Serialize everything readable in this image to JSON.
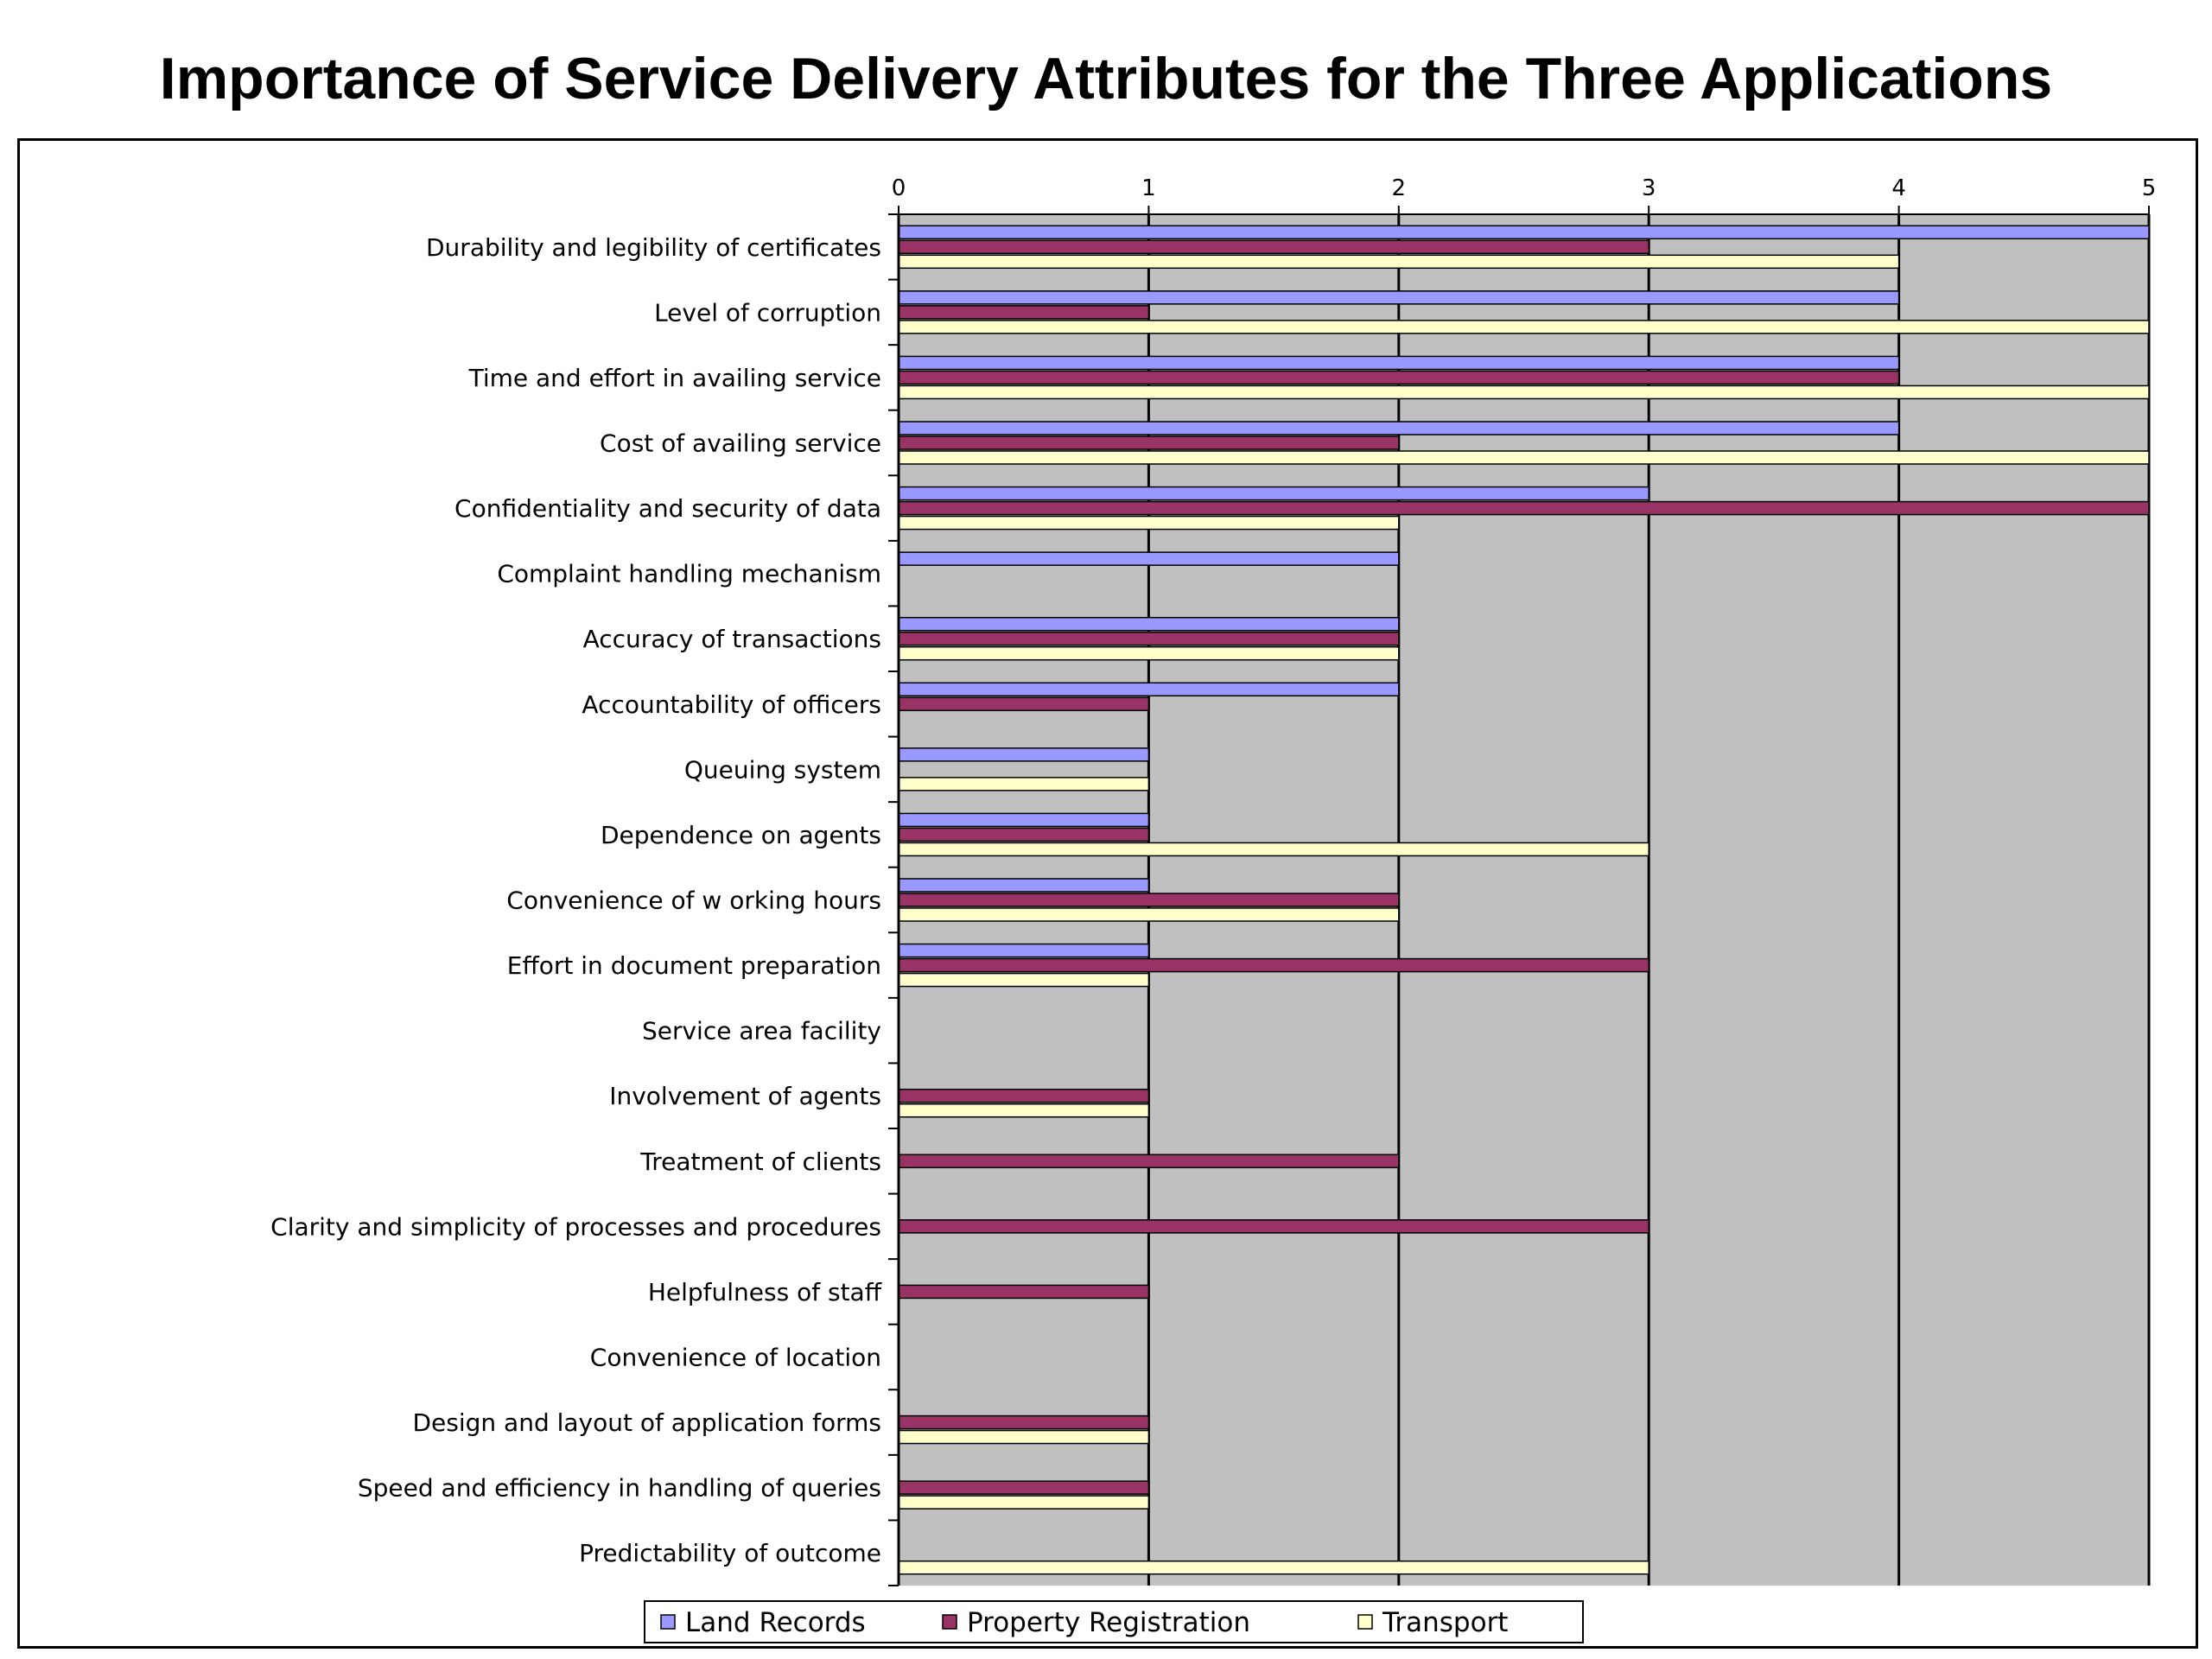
{
  "chart_data": {
    "type": "bar",
    "orientation": "horizontal",
    "title": "Importance of Service Delivery Attributes for the Three Applications",
    "xlim": [
      0,
      5
    ],
    "ticks": [
      "0",
      "1",
      "2",
      "3",
      "4",
      "5"
    ],
    "grid": true,
    "legend_position": "bottom",
    "colors": {
      "Land Records": "#9999ff",
      "Property Registration": "#993366",
      "Transport": "#ffffcc",
      "plot_background": "#c0c0c0"
    },
    "categories": [
      "Durability and legibility of certificates",
      "Level of corruption",
      "Time and effort in availing service",
      "Cost of availing service",
      "Confidentiality and security of data",
      "Complaint handling mechanism",
      "Accuracy of transactions",
      "Accountability of officers",
      "Queuing system",
      "Dependence on agents",
      "Convenience of w orking hours",
      "Effort in document preparation",
      "Service area facility",
      "Involvement of agents",
      "Treatment of clients",
      "Clarity and simplicity of processes and procedures",
      "Helpfulness of staff",
      "Convenience of location",
      "Design and layout of application forms",
      "Speed and efficiency in handling of queries",
      "Predictability of outcome"
    ],
    "series": [
      {
        "name": "Land Records",
        "values": [
          5,
          4,
          4,
          4,
          3,
          2,
          2,
          2,
          1,
          1,
          1,
          1,
          0,
          0,
          0,
          0,
          0,
          0,
          0,
          0,
          0
        ]
      },
      {
        "name": "Property Registration",
        "values": [
          3,
          1,
          4,
          2,
          5,
          0,
          2,
          1,
          0,
          1,
          2,
          3,
          0,
          1,
          2,
          3,
          1,
          0,
          1,
          1,
          0
        ]
      },
      {
        "name": "Transport",
        "values": [
          4,
          5,
          5,
          5,
          2,
          0,
          2,
          0,
          1,
          3,
          2,
          1,
          0,
          1,
          0,
          0,
          0,
          0,
          1,
          1,
          3
        ]
      }
    ]
  }
}
